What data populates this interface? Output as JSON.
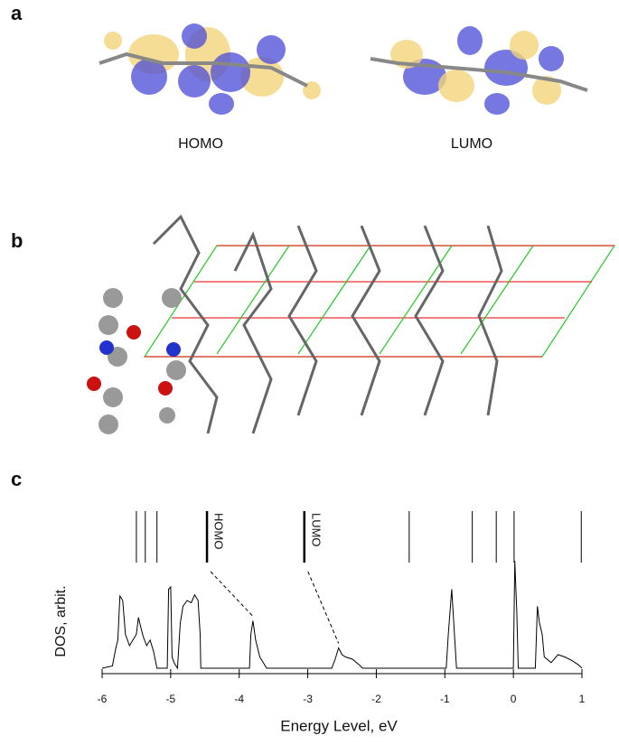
{
  "panel_labels": [
    "a",
    "b",
    "c"
  ],
  "orbital_labels": [
    "HOMO",
    "LUMO"
  ],
  "chart_data": {
    "type": "line",
    "xlabel": "Energy Level, eV",
    "ylabel": "DOS, arbit.",
    "xlim": [
      -6,
      1
    ],
    "xticks": [
      -6,
      -5,
      -4,
      -3,
      -2,
      -1,
      0,
      1
    ],
    "ylim": [
      0,
      1
    ],
    "color": "#000000",
    "levels": [
      -5.5,
      -5.37,
      -5.2,
      -1.52,
      -0.6,
      -0.25,
      0.01,
      0.99
    ],
    "labeled_levels": [
      {
        "x": -4.47,
        "label": "HOMO",
        "peak": -3.8
      },
      {
        "x": -3.05,
        "label": "LUMO",
        "peak": -2.55
      }
    ],
    "x": [
      -6.0,
      -5.85,
      -5.8,
      -5.77,
      -5.74,
      -5.7,
      -5.66,
      -5.6,
      -5.55,
      -5.5,
      -5.47,
      -5.43,
      -5.4,
      -5.35,
      -5.3,
      -5.25,
      -5.2,
      -5.05,
      -5.03,
      -5.0,
      -4.98,
      -4.95,
      -4.9,
      -4.86,
      -4.82,
      -4.76,
      -4.7,
      -4.65,
      -4.6,
      -4.57,
      -4.56,
      -3.85,
      -3.83,
      -3.8,
      -3.76,
      -3.7,
      -3.65,
      -3.6,
      -2.65,
      -2.6,
      -2.55,
      -2.5,
      -2.45,
      -2.35,
      -2.25,
      -2.2,
      -0.98,
      -0.95,
      -0.9,
      -0.86,
      -0.83,
      0.0,
      0.02,
      0.05,
      0.07,
      0.32,
      0.35,
      0.38,
      0.42,
      0.45,
      0.55,
      0.65,
      0.75,
      0.85,
      0.95,
      1.0
    ],
    "values": [
      0,
      0.02,
      0.18,
      0.25,
      0.64,
      0.6,
      0.3,
      0.2,
      0.25,
      0.3,
      0.45,
      0.35,
      0.28,
      0.2,
      0.25,
      0.15,
      0,
      0,
      0.7,
      0.72,
      0.1,
      0.05,
      0,
      0.4,
      0.55,
      0.6,
      0.58,
      0.65,
      0.6,
      0.3,
      0,
      0,
      0.3,
      0.42,
      0.25,
      0.1,
      0.05,
      0,
      0,
      0.08,
      0.18,
      0.12,
      0.1,
      0.08,
      0.03,
      0,
      0,
      0.3,
      0.7,
      0.3,
      0,
      0,
      0.95,
      0.5,
      0,
      0,
      0.55,
      0.4,
      0.3,
      0.1,
      0.05,
      0.12,
      0.1,
      0.07,
      0.03,
      0
    ]
  }
}
